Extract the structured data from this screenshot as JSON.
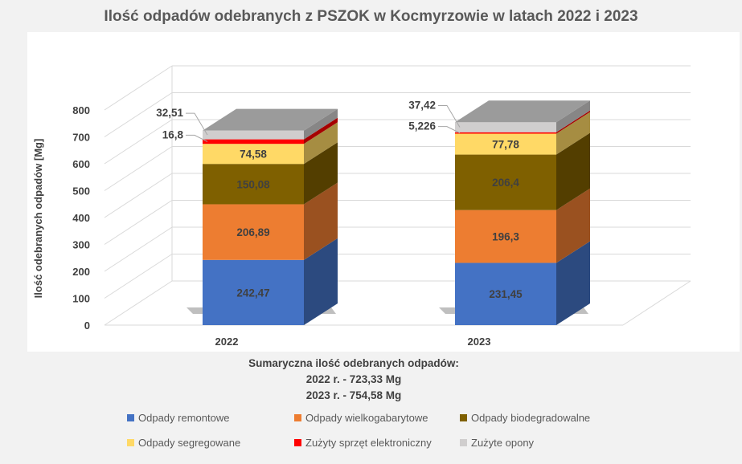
{
  "chart_data": {
    "type": "bar",
    "stacked": true,
    "title": "Ilość odpadów odebranych z PSZOK w Kocmyrzowie w latach 2022 i 2023",
    "ylabel": "Ilość odebranych odpadów [Mg]",
    "xlabel": "",
    "categories": [
      "2022",
      "2023"
    ],
    "ylim": [
      0,
      800
    ],
    "yticks": [
      "0",
      "100",
      "200",
      "300",
      "400",
      "500",
      "600",
      "700",
      "800"
    ],
    "grid": true,
    "legend_position": "bottom",
    "series": [
      {
        "name": "Odpady remontowe",
        "values": [
          242.47,
          231.45
        ],
        "labels": [
          "242,47",
          "231,45"
        ],
        "color": "#4472c4"
      },
      {
        "name": "Odpady wielkogabarytowe",
        "values": [
          206.89,
          196.3
        ],
        "labels": [
          "206,89",
          "196,3"
        ],
        "color": "#ed7d31"
      },
      {
        "name": "Odpady biodegradowalne",
        "values": [
          150.08,
          206.4
        ],
        "labels": [
          "150,08",
          "206,4"
        ],
        "color": "#7f6000"
      },
      {
        "name": "Odpady segregowane",
        "values": [
          74.58,
          77.78
        ],
        "labels": [
          "74,58",
          "77,78"
        ],
        "color": "#ffd966"
      },
      {
        "name": "Zużyty sprzęt elektroniczny",
        "values": [
          16.8,
          5.226
        ],
        "labels": [
          "16,8",
          "5,226"
        ],
        "color": "#ff0000"
      },
      {
        "name": "Zużyte opony",
        "values": [
          32.51,
          37.42
        ],
        "labels": [
          "32,51",
          "37,42"
        ],
        "color": "#d0cece"
      }
    ],
    "top_color": "#9b9b9b"
  },
  "summary": {
    "heading": "Sumaryczna ilość odebranych odpadów:",
    "line1": "2022 r. - 723,33 Mg",
    "line2": "2023 r. - 754,58 Mg"
  }
}
